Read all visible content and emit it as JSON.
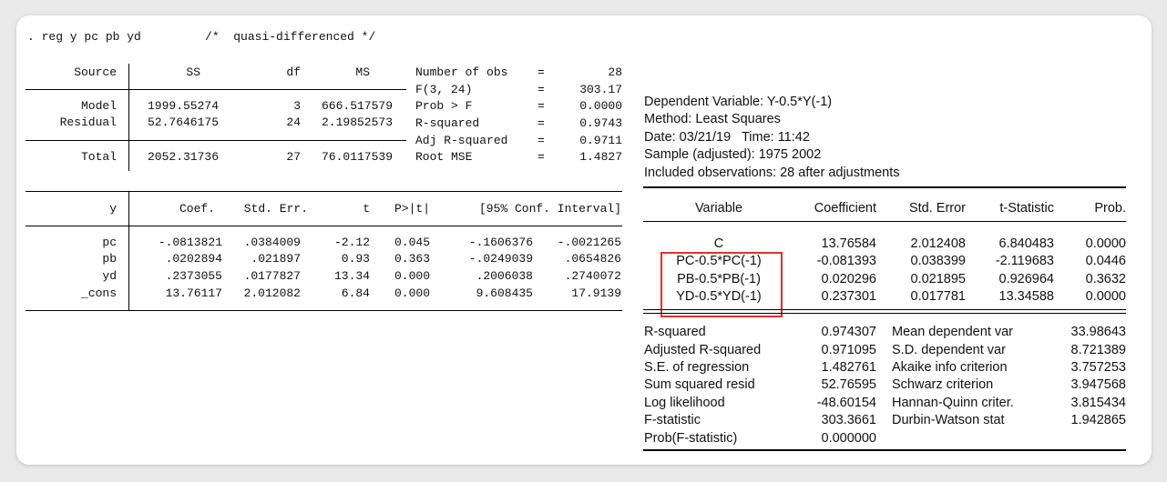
{
  "stata": {
    "command": ". reg y pc pb yd         /*  quasi-differenced */",
    "anova": {
      "headers": [
        "Source",
        "SS",
        "df",
        "MS"
      ],
      "rows": [
        [
          "Model",
          "1999.55274",
          "3",
          "666.517579"
        ],
        [
          "Residual",
          "52.7646175",
          "24",
          "2.19852573"
        ],
        [
          "Total",
          "2052.31736",
          "27",
          "76.0117539"
        ]
      ]
    },
    "stats": [
      [
        "Number of obs",
        "=",
        "28"
      ],
      [
        "F(3, 24)",
        "=",
        "303.17"
      ],
      [
        "Prob > F",
        "=",
        "0.0000"
      ],
      [
        "R-squared",
        "=",
        "0.9743"
      ],
      [
        "Adj R-squared",
        "=",
        "0.9711"
      ],
      [
        "Root MSE",
        "=",
        "1.4827"
      ]
    ],
    "coef_headers": [
      "y",
      "Coef.",
      "Std. Err.",
      "t",
      "P>|t|",
      "[95% Conf. Interval]"
    ],
    "coef_rows": [
      [
        "pc",
        "-.0813821",
        ".0384009",
        "-2.12",
        "0.045",
        "-.1606376",
        "-.0021265"
      ],
      [
        "pb",
        ".0202894",
        ".021897",
        "0.93",
        "0.363",
        "-.0249039",
        ".0654826"
      ],
      [
        "yd",
        ".2373055",
        ".0177827",
        "13.34",
        "0.000",
        ".2006038",
        ".2740072"
      ],
      [
        "_cons",
        "13.76117",
        "2.012082",
        "6.84",
        "0.000",
        "9.608435",
        "17.9139"
      ]
    ]
  },
  "eviews": {
    "header": [
      "Dependent Variable: Y-0.5*Y(-1)",
      "Method: Least Squares",
      "Date: 03/21/19   Time: 11:42",
      "Sample (adjusted): 1975 2002",
      "Included observations: 28 after adjustments"
    ],
    "columns": [
      "Variable",
      "Coefficient",
      "Std. Error",
      "t-Statistic",
      "Prob."
    ],
    "rows": [
      [
        "C",
        "13.76584",
        "2.012408",
        "6.840483",
        "0.0000"
      ],
      [
        "PC-0.5*PC(-1)",
        "-0.081393",
        "0.038399",
        "-2.119683",
        "0.0446"
      ],
      [
        "PB-0.5*PB(-1)",
        "0.020296",
        "0.021895",
        "0.926964",
        "0.3632"
      ],
      [
        "YD-0.5*YD(-1)",
        "0.237301",
        "0.017781",
        "13.34588",
        "0.0000"
      ]
    ],
    "summary": [
      [
        "R-squared",
        "0.974307",
        "Mean dependent var",
        "33.98643"
      ],
      [
        "Adjusted R-squared",
        "0.971095",
        "S.D. dependent var",
        "8.721389"
      ],
      [
        "S.E. of regression",
        "1.482761",
        "Akaike info criterion",
        "3.757253"
      ],
      [
        "Sum squared resid",
        "52.76595",
        "Schwarz criterion",
        "3.947568"
      ],
      [
        "Log likelihood",
        "-48.60154",
        "Hannan-Quinn criter.",
        "3.815434"
      ],
      [
        "F-statistic",
        "303.3661",
        "Durbin-Watson stat",
        "1.942865"
      ],
      [
        "Prob(F-statistic)",
        "0.000000",
        "",
        ""
      ]
    ],
    "highlight_color": "#d9362b"
  }
}
